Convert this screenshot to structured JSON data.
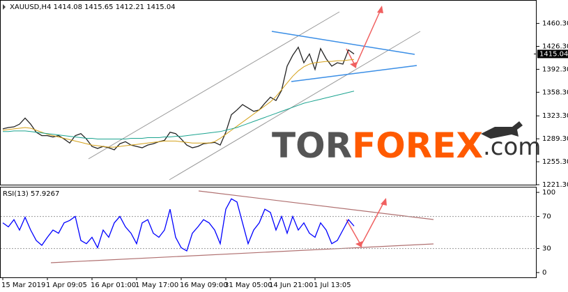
{
  "header": {
    "symbol": "XAUUSD,H4",
    "ohlc": [
      1414.08,
      1415.65,
      1412.21,
      1415.04
    ]
  },
  "logo": {
    "prefix": "TOR",
    "brand": "FOREX",
    "suffix": ".com"
  },
  "chart_data": [
    {
      "type": "line",
      "title": "XAUUSD,H4",
      "last_price": 1415.04,
      "categories": [
        "15 Mar 2019",
        null,
        null,
        null,
        null,
        null,
        null,
        null,
        "1 Apr 09:05",
        null,
        null,
        null,
        null,
        null,
        null,
        null,
        "16 Apr 01:00",
        null,
        null,
        null,
        null,
        null,
        null,
        null,
        "1 May 17:00",
        null,
        null,
        null,
        null,
        null,
        null,
        null,
        "16 May 09:00",
        null,
        null,
        null,
        null,
        null,
        null,
        null,
        "31 May 05:00",
        null,
        null,
        null,
        null,
        null,
        null,
        null,
        "14 Jun 21:00",
        null,
        null,
        null,
        null,
        null,
        null,
        null,
        "1 Jul 13:05",
        null,
        null,
        null,
        null,
        null,
        null,
        null
      ],
      "series": [
        {
          "color": "#222222",
          "values": [
            1304,
            1306,
            1307,
            1311,
            1320,
            1311,
            1299,
            1294,
            1294,
            1292,
            1294,
            1289,
            1283,
            1294,
            1297,
            1289,
            1278,
            1275,
            1278,
            1276,
            1273,
            1282,
            1285,
            1280,
            1278,
            1276,
            1280,
            1282,
            1285,
            1287,
            1299,
            1297,
            1289,
            1280,
            1276,
            1278,
            1282,
            1283,
            1284,
            1280,
            1299,
            1325,
            1332,
            1340,
            1335,
            1330,
            1332,
            1342,
            1351,
            1346,
            1361,
            1397,
            1413,
            1425,
            1402,
            1415,
            1392,
            1423,
            1408,
            1397,
            1402,
            1400,
            1421,
            1415
          ]
        },
        {
          "color": "#d4a017",
          "values": [
            1302,
            1303,
            1304,
            1305,
            1306,
            1305,
            1302,
            1299,
            1296,
            1294,
            1292,
            1290,
            1288,
            1286,
            1284,
            1282,
            1280,
            1279,
            1278,
            1277,
            1277,
            1278,
            1279,
            1280,
            1281,
            1282,
            1283,
            1284,
            1285,
            1286,
            1286,
            1286,
            1285,
            1284,
            1283,
            1283,
            1283,
            1283,
            1285,
            1290,
            1296,
            1302,
            1308,
            1314,
            1320,
            1326,
            1332,
            1338,
            1344,
            1352,
            1362,
            1372,
            1382,
            1390,
            1396,
            1400,
            1402,
            1403,
            1404,
            1404,
            1405,
            1405,
            1406,
            1407
          ]
        },
        {
          "color": "#1aa38f",
          "values": [
            1300,
            1300,
            1301,
            1301,
            1301,
            1300,
            1299,
            1298,
            1297,
            1296,
            1295,
            1294,
            1293,
            1292,
            1291,
            1290,
            1290,
            1289,
            1289,
            1289,
            1289,
            1289,
            1289,
            1290,
            1290,
            1290,
            1291,
            1291,
            1291,
            1292,
            1292,
            1293,
            1293,
            1294,
            1295,
            1296,
            1297,
            1298,
            1299,
            1300,
            1302,
            1304,
            1306,
            1309,
            1312,
            1315,
            1318,
            1321,
            1324,
            1327,
            1330,
            1333,
            1336,
            1339,
            1342,
            1344,
            1346,
            1348,
            1350,
            1352,
            1354,
            1356,
            1358,
            1360
          ]
        }
      ],
      "ylim": [
        1221.3,
        1495
      ],
      "yticks": [
        {
          "value": 1460.3,
          "label": "1460.30"
        },
        {
          "value": 1426.3,
          "label": "1426.30"
        },
        {
          "value": 1392.3,
          "label": "1392.30"
        },
        {
          "value": 1358.3,
          "label": "1358.30"
        },
        {
          "value": 1323.3,
          "label": "1323.30"
        },
        {
          "value": 1289.3,
          "label": "1289.30"
        },
        {
          "value": 1255.3,
          "label": "1255.30"
        },
        {
          "value": 1221.3,
          "label": "1221.30"
        }
      ]
    },
    {
      "type": "line",
      "title": "RSI(13)",
      "current": 57.9267,
      "series": [
        {
          "color": "#0000ff",
          "values": [
            62,
            57,
            66,
            53,
            69,
            53,
            40,
            34,
            44,
            53,
            49,
            62,
            65,
            70,
            40,
            36,
            44,
            31,
            53,
            44,
            62,
            70,
            57,
            49,
            36,
            62,
            66,
            49,
            44,
            53,
            79,
            44,
            31,
            27,
            49,
            57,
            66,
            62,
            53,
            36,
            79,
            92,
            88,
            62,
            36,
            53,
            62,
            79,
            75,
            53,
            70,
            49,
            70,
            53,
            62,
            49,
            44,
            62,
            53,
            36,
            40,
            53,
            66,
            58
          ]
        }
      ],
      "ylim": [
        -6,
        107
      ],
      "yticks": [
        100,
        70,
        30,
        0
      ],
      "levels": [
        70,
        30
      ]
    }
  ]
}
